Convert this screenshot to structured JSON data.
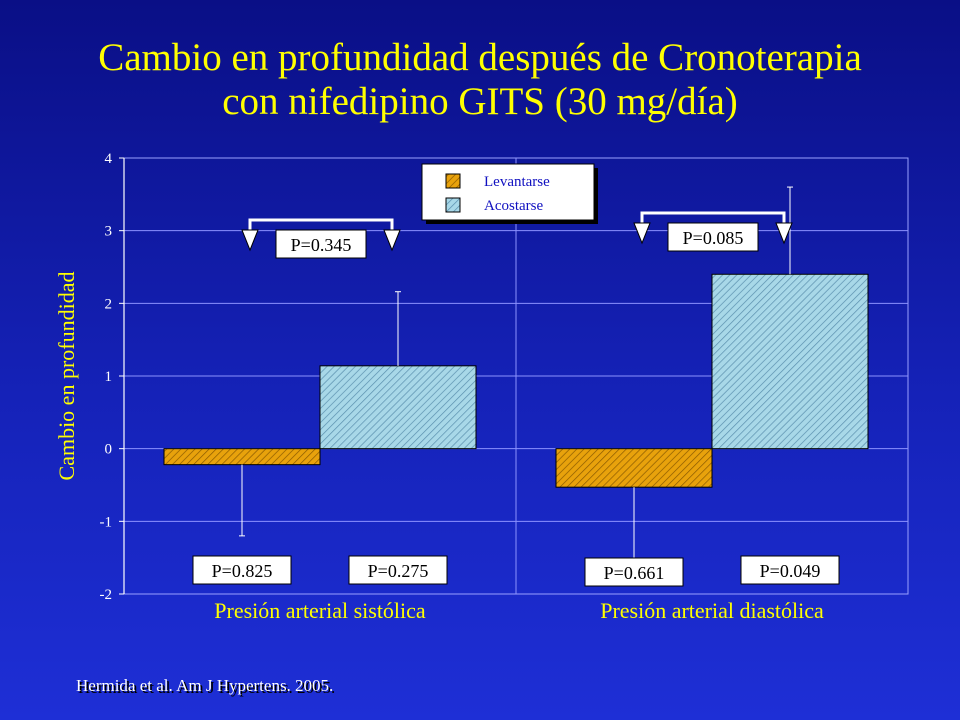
{
  "title_line1": "Cambio en profundidad después de Cronoterapia",
  "title_line2": "con nifedipino GITS (30 mg/día)",
  "citation": "Hermida et al. Am J Hypertens. 2005.",
  "colors": {
    "title": "#ffff00",
    "levantarse": "#e8a20c",
    "acostarse": "#a8d8e8",
    "background": "#1522b8"
  },
  "chart_data": {
    "type": "bar",
    "ylabel": "Cambio en profundidad",
    "ylim": [
      -2,
      4
    ],
    "yticks": [
      "4",
      "3",
      "2",
      "1",
      "0",
      "-1",
      "-2"
    ],
    "grid": true,
    "legend": "top-center",
    "categories": [
      "Presión arterial sistólica",
      "Presión arterial diastólica"
    ],
    "series": [
      {
        "name": "Levantarse",
        "values": [
          -0.22,
          -0.53
        ],
        "error": [
          0.98,
          1.1
        ],
        "error_direction": "down"
      },
      {
        "name": "Acostarse",
        "values": [
          1.14,
          2.4
        ],
        "error": [
          1.02,
          1.2
        ],
        "error_direction": "up"
      }
    ],
    "between_pvalues": [
      "P=0.345",
      "P=0.085"
    ],
    "series_pvalues": [
      [
        "P=0.825",
        "P=0.275"
      ],
      [
        "P=0.661",
        "P=0.049"
      ]
    ]
  }
}
